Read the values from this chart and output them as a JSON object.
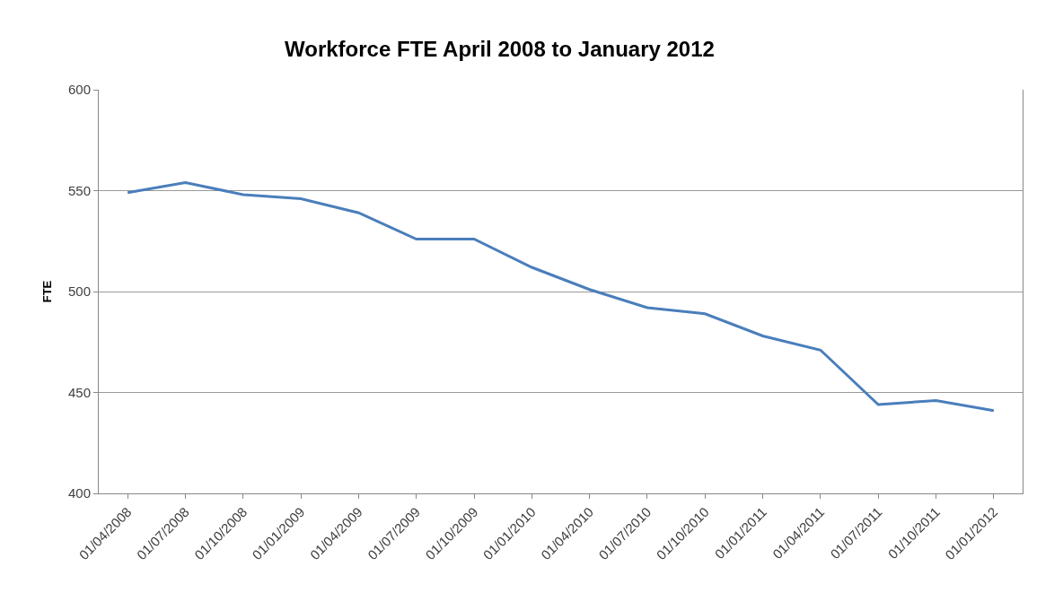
{
  "chart_data": {
    "type": "line",
    "title": "Workforce FTE April 2008 to January 2012",
    "ylabel": "FTE",
    "categories": [
      "01/04/2008",
      "01/07/2008",
      "01/10/2008",
      "01/01/2009",
      "01/04/2009",
      "01/07/2009",
      "01/10/2009",
      "01/01/2010",
      "01/04/2010",
      "01/07/2010",
      "01/10/2010",
      "01/01/2011",
      "01/04/2011",
      "01/07/2011",
      "01/10/2011",
      "01/01/2012"
    ],
    "series": [
      {
        "color": "#4a7ebb",
        "values": [
          549,
          554,
          548,
          546,
          539,
          526,
          526,
          512,
          501,
          492,
          489,
          478,
          471,
          444,
          446,
          441
        ]
      }
    ],
    "ylim": [
      400,
      600
    ],
    "yticks": [
      400,
      450,
      500,
      550,
      600
    ],
    "grid": "y",
    "marker": "none",
    "line_style": "solid"
  }
}
